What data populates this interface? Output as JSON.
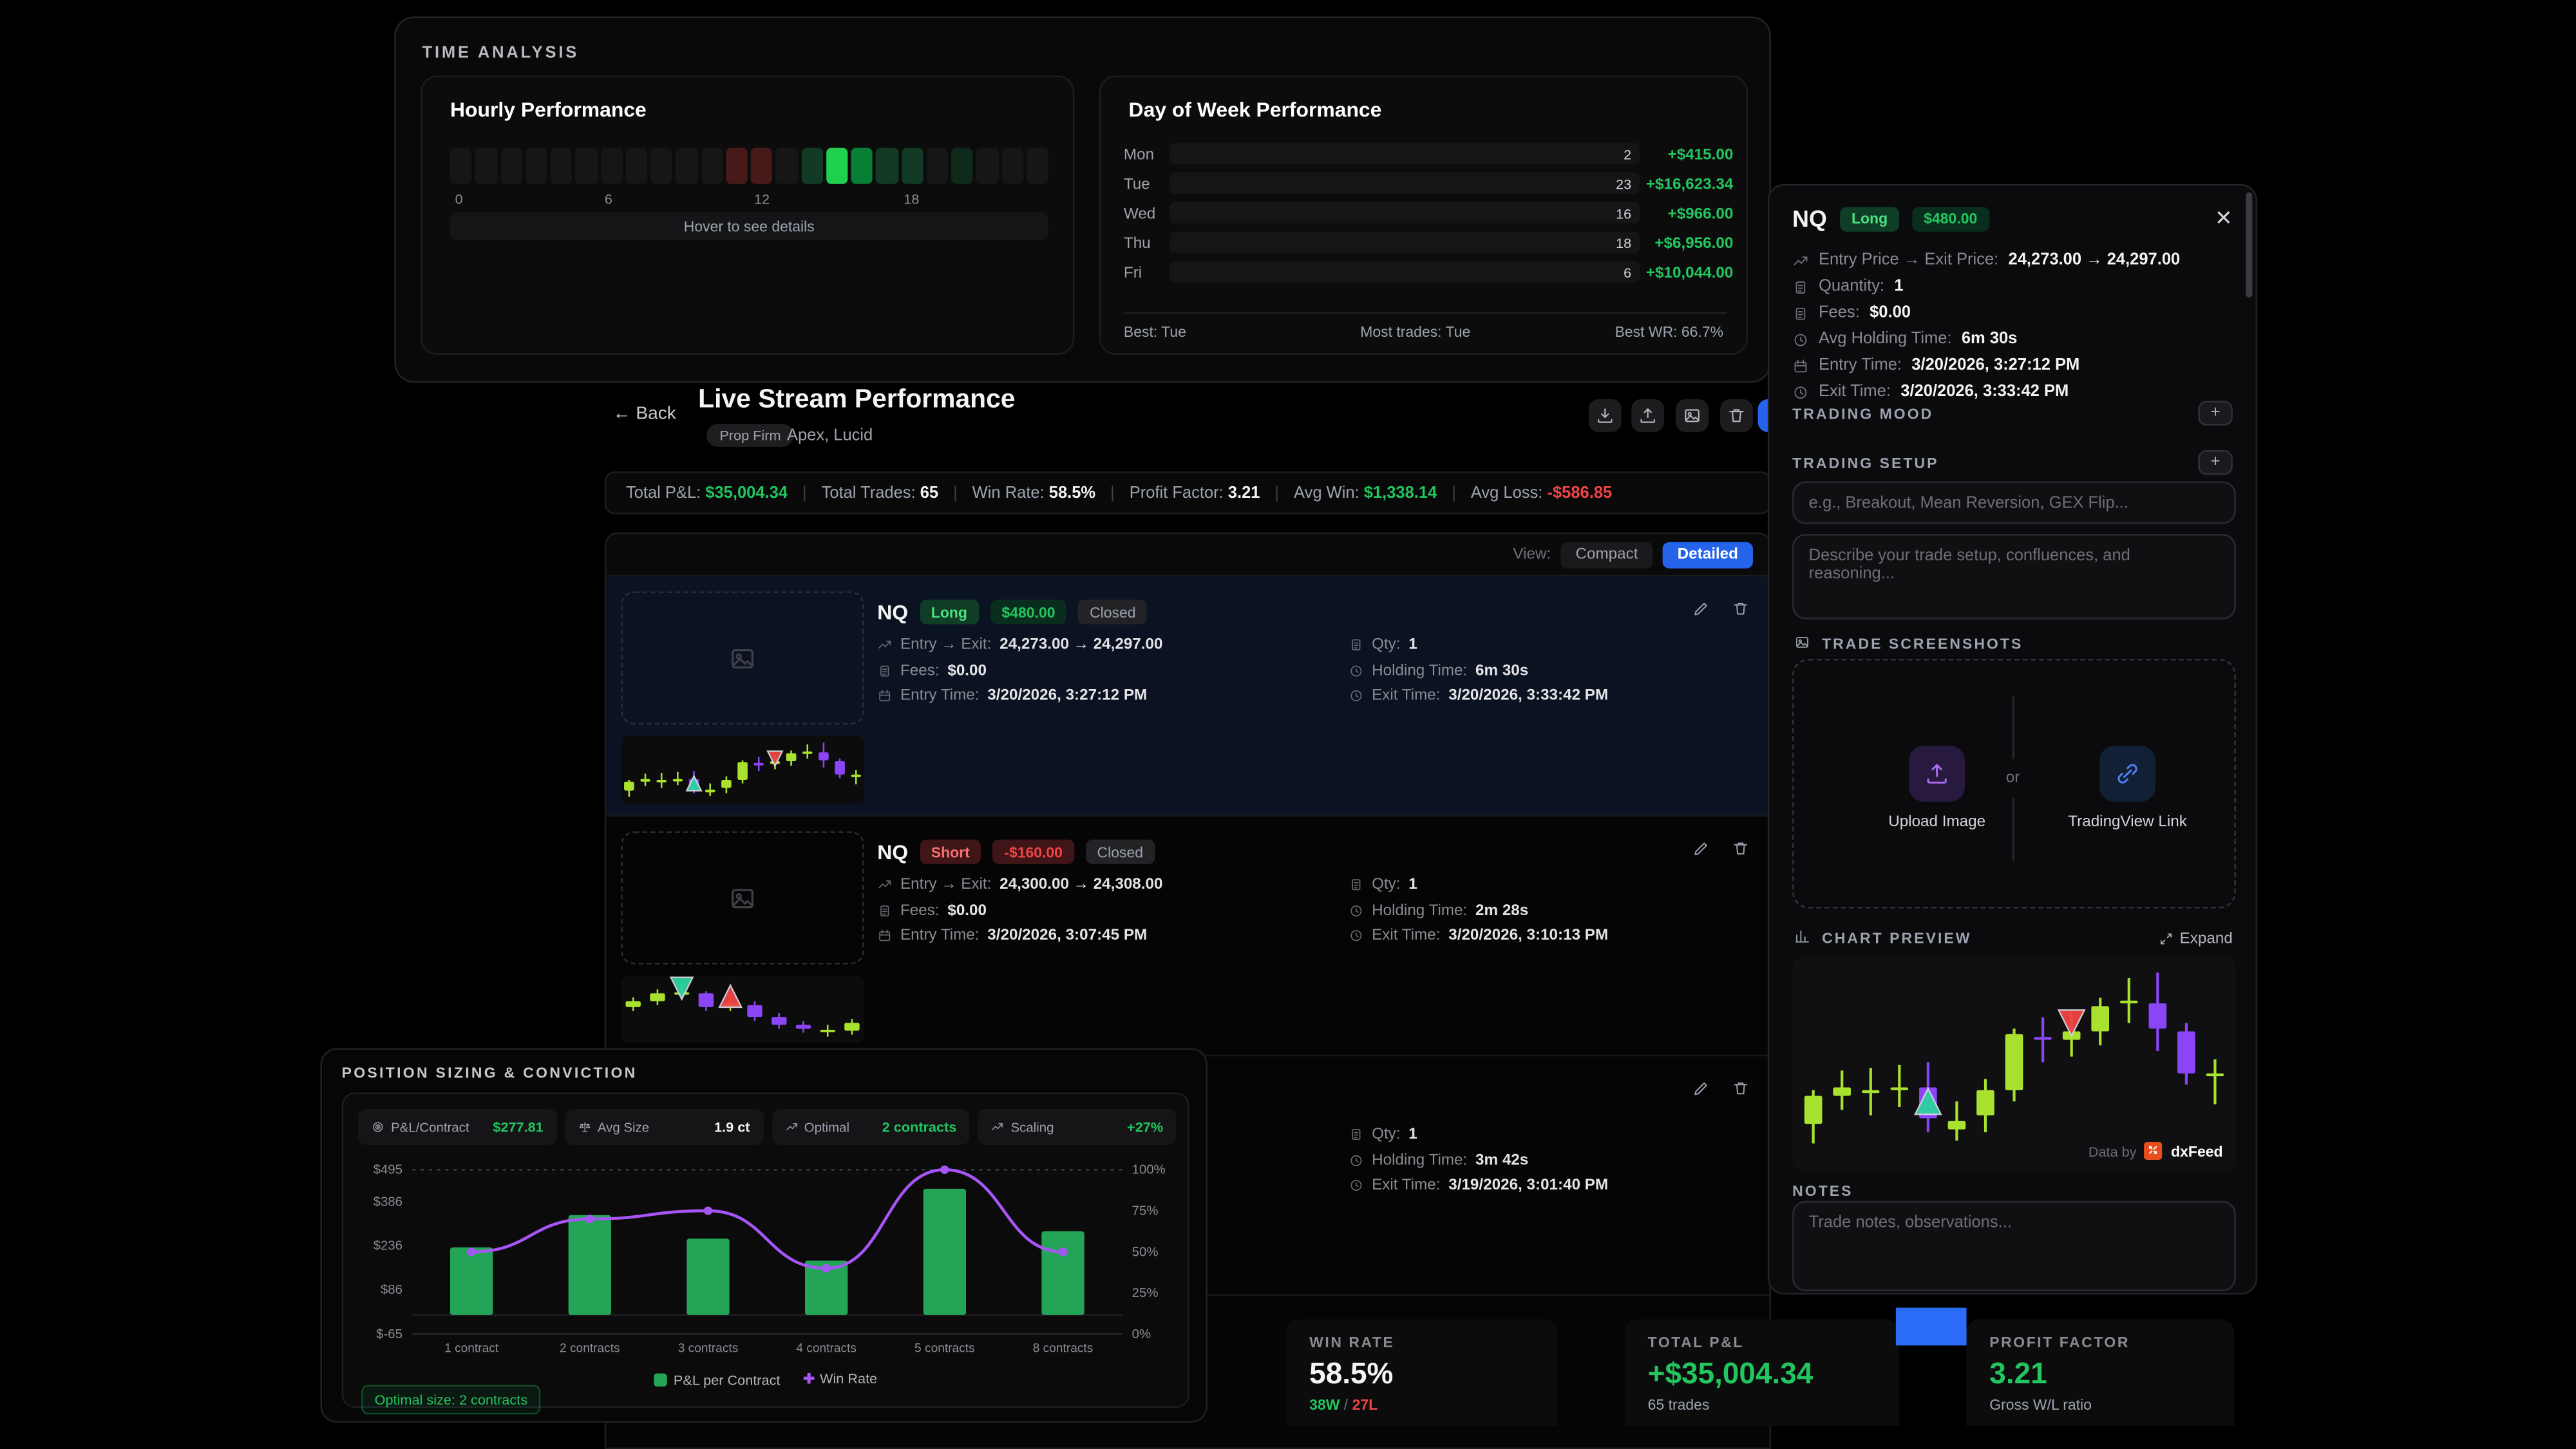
{
  "colors": {
    "green": "#22c55e",
    "red": "#ef4444",
    "lime": "#a8e22e",
    "purple": "#8b45f7",
    "line_purple": "#a855f7",
    "bar_green": "#23a457",
    "blue": "#2563eb"
  },
  "time_analysis": {
    "title": "TIME ANALYSIS",
    "hourly": {
      "title": "Hourly Performance",
      "hover_hint": "Hover to see details",
      "tick_labels": [
        "0",
        "6",
        "12",
        "18"
      ],
      "cells": [
        "n",
        "n",
        "n",
        "n",
        "n",
        "n",
        "n",
        "n",
        "n",
        "n",
        "n",
        "r",
        "r",
        "n",
        "g2",
        "g4",
        "g3",
        "g2",
        "g2",
        "n",
        "g1",
        "n",
        "n",
        "n"
      ]
    },
    "day_of_week": {
      "title": "Day of Week Performance",
      "rows": [
        {
          "day": "Mon",
          "count": "2",
          "pnl": "+$415.00",
          "pct": 2.5
        },
        {
          "day": "Tue",
          "count": "23",
          "pnl": "+$16,623.34",
          "pct": 100
        },
        {
          "day": "Wed",
          "count": "16",
          "pnl": "+$966.00",
          "pct": 5.8
        },
        {
          "day": "Thu",
          "count": "18",
          "pnl": "+$6,956.00",
          "pct": 41.8
        },
        {
          "day": "Fri",
          "count": "6",
          "pnl": "+$10,044.00",
          "pct": 60.4
        }
      ],
      "footer": {
        "best": "Best: Tue",
        "most": "Most trades: Tue",
        "best_wr": "Best WR: 66.7%"
      }
    }
  },
  "stream": {
    "back": "Back",
    "title": "Live Stream Performance",
    "chip": "Prop Firm",
    "subtitle": "Apex, Lucid",
    "stats": [
      {
        "label": "Total P&L:",
        "value": "$35,004.34",
        "tone": "green"
      },
      {
        "label": "Total Trades:",
        "value": "65",
        "tone": "white"
      },
      {
        "label": "Win Rate:",
        "value": "58.5%",
        "tone": "white"
      },
      {
        "label": "Profit Factor:",
        "value": "3.21",
        "tone": "white"
      },
      {
        "label": "Avg Win:",
        "value": "$1,338.14",
        "tone": "green"
      },
      {
        "label": "Avg Loss:",
        "value": "-$586.85",
        "tone": "red"
      }
    ],
    "view": {
      "label": "View:",
      "compact": "Compact",
      "detailed": "Detailed"
    },
    "trades": [
      {
        "symbol": "NQ",
        "side": "Long",
        "side_tone": "long",
        "pnl": "$480.00",
        "pnl_tone": "g",
        "status": "Closed",
        "selected": true,
        "candles": "long",
        "rows_left": [
          [
            "trend",
            "Entry → Exit:",
            "24,273.00 → 24,297.00"
          ],
          [
            "file",
            "Fees:",
            "$0.00"
          ],
          [
            "calendar",
            "Entry Time:",
            "3/20/2026, 3:27:12 PM"
          ]
        ],
        "rows_right": [
          [
            "file",
            "Qty:",
            "1"
          ],
          [
            "clock",
            "Holding Time:",
            "6m 30s"
          ],
          [
            "clock",
            "Exit Time:",
            "3/20/2026, 3:33:42 PM"
          ]
        ]
      },
      {
        "symbol": "NQ",
        "side": "Short",
        "side_tone": "short",
        "pnl": "-$160.00",
        "pnl_tone": "r",
        "status": "Closed",
        "selected": false,
        "candles": "short",
        "rows_left": [
          [
            "trend",
            "Entry → Exit:",
            "24,300.00 → 24,308.00"
          ],
          [
            "file",
            "Fees:",
            "$0.00"
          ],
          [
            "calendar",
            "Entry Time:",
            "3/20/2026, 3:07:45 PM"
          ]
        ],
        "rows_right": [
          [
            "file",
            "Qty:",
            "1"
          ],
          [
            "clock",
            "Holding Time:",
            "2m 28s"
          ],
          [
            "clock",
            "Exit Time:",
            "3/20/2026, 3:10:13 PM"
          ]
        ]
      },
      {
        "symbol": "",
        "side": "",
        "side_tone": "",
        "pnl": "",
        "pnl_tone": "",
        "status": "",
        "selected": false,
        "candles": "",
        "partial": true,
        "rows_left": [],
        "rows_right": [
          [
            "file",
            "Qty:",
            "1"
          ],
          [
            "clock",
            "Holding Time:",
            "3m 42s"
          ],
          [
            "clock",
            "Exit Time:",
            "3/19/2026, 3:01:40 PM"
          ]
        ]
      }
    ]
  },
  "position_sizing": {
    "title": "POSITION SIZING & CONVICTION",
    "pills": [
      {
        "icon": "target",
        "label": "P&L/Contract",
        "value": "$277.81",
        "tone": "green"
      },
      {
        "icon": "scale",
        "label": "Avg Size",
        "value": "1.9 ct",
        "tone": "white"
      },
      {
        "icon": "trend",
        "label": "Optimal",
        "value": "2 contracts",
        "tone": "green"
      },
      {
        "icon": "trend",
        "label": "Scaling",
        "value": "+27%",
        "tone": "green"
      }
    ],
    "legend": {
      "bars": "P&L per Contract",
      "line": "Win Rate"
    },
    "optimal_badge": "Optimal size: 2 contracts"
  },
  "panel": {
    "symbol": "NQ",
    "side": "Long",
    "pnl": "$480.00",
    "rows": [
      [
        "trend",
        "Entry Price → Exit Price:",
        "24,273.00 → 24,297.00"
      ],
      [
        "file",
        "Quantity:",
        "1"
      ],
      [
        "file",
        "Fees:",
        "$0.00"
      ],
      [
        "clock",
        "Avg Holding Time:",
        "6m 30s"
      ],
      [
        "calendar",
        "Entry Time:",
        "3/20/2026, 3:27:12 PM"
      ],
      [
        "clock",
        "Exit Time:",
        "3/20/2026, 3:33:42 PM"
      ]
    ],
    "mood_label": "TRADING MOOD",
    "setup_label": "TRADING SETUP",
    "setup_placeholder": "e.g., Breakout, Mean Reversion, GEX Flip...",
    "setup_desc_placeholder": "Describe your trade setup, confluences, and reasoning...",
    "shots_label": "TRADE SCREENSHOTS",
    "upload_label": "Upload Image",
    "or": "or",
    "tv_label": "TradingView Link",
    "preview_label": "CHART PREVIEW",
    "expand": "Expand",
    "databy": "Data by",
    "dxfeed": "dxFeed",
    "notes_label": "NOTES",
    "notes_placeholder": "Trade notes, observations..."
  },
  "bottom_stats": [
    {
      "label": "WIN RATE",
      "value": "58.5%",
      "tone": "white",
      "sub_parts": [
        [
          "38W",
          "green"
        ],
        [
          " / ",
          "sep"
        ],
        [
          "27L",
          "red"
        ]
      ]
    },
    {
      "label": "TOTAL P&L",
      "value": "+$35,004.34",
      "tone": "green",
      "sub_parts": [
        [
          "65 trades",
          "muted"
        ]
      ]
    },
    {
      "label": "PROFIT FACTOR",
      "value": "3.21",
      "tone": "green",
      "sub_parts": [
        [
          "Gross W/L ratio",
          "muted"
        ]
      ]
    }
  ],
  "chart_data": [
    {
      "id": "hourly_heatmap",
      "type": "heatmap",
      "title": "Hourly Performance",
      "x": [
        0,
        1,
        2,
        3,
        4,
        5,
        6,
        7,
        8,
        9,
        10,
        11,
        12,
        13,
        14,
        15,
        16,
        17,
        18,
        19,
        20,
        21,
        22,
        23
      ],
      "values": [
        "none",
        "none",
        "none",
        "none",
        "none",
        "none",
        "none",
        "none",
        "none",
        "none",
        "none",
        "loss",
        "loss",
        "none",
        "win-low",
        "win-high",
        "win-med",
        "win-low",
        "win-low",
        "none",
        "win-faint",
        "none",
        "none",
        "none"
      ],
      "tick_labels": [
        "0",
        "6",
        "12",
        "18"
      ]
    },
    {
      "id": "day_of_week",
      "type": "bar",
      "title": "Day of Week Performance",
      "categories": [
        "Mon",
        "Tue",
        "Wed",
        "Thu",
        "Fri"
      ],
      "series": [
        {
          "name": "trades",
          "values": [
            2,
            23,
            16,
            18,
            6
          ]
        },
        {
          "name": "pnl_usd",
          "values": [
            415.0,
            16623.34,
            966.0,
            6956.0,
            10044.0
          ]
        }
      ],
      "annotations": {
        "best": "Tue",
        "most_trades": "Tue",
        "best_wr": "66.7%"
      }
    },
    {
      "id": "position_sizing",
      "type": "bar",
      "categories": [
        "1 contract",
        "2 contracts",
        "3 contracts",
        "4 contracts",
        "5 contracts",
        "8 contracts"
      ],
      "series": [
        {
          "name": "P&L per Contract",
          "type": "bar",
          "values": [
            230,
            340,
            260,
            185,
            430,
            285
          ]
        },
        {
          "name": "Win Rate",
          "type": "line",
          "values": [
            50,
            70,
            75,
            40,
            100,
            50
          ]
        }
      ],
      "y_left": {
        "ticks": [
          495,
          386,
          236,
          86,
          -65
        ],
        "labels": [
          "$495",
          "$386",
          "$236",
          "$86",
          "$-65"
        ],
        "range": [
          -65,
          495
        ]
      },
      "y_right": {
        "ticks": [
          100,
          75,
          50,
          25,
          0
        ],
        "labels": [
          "100%",
          "75%",
          "50%",
          "25%",
          "0%"
        ],
        "range": [
          0,
          100
        ]
      },
      "legend_position": "bottom"
    },
    {
      "id": "candles_long",
      "type": "candlestick",
      "candles": [
        {
          "o": 30,
          "c": 40,
          "h": 42,
          "l": 23,
          "k": "g"
        },
        {
          "o": 40,
          "c": 43,
          "h": 49,
          "l": 35,
          "k": "g"
        },
        {
          "o": 41,
          "c": 42,
          "h": 50,
          "l": 33,
          "k": "g"
        },
        {
          "o": 42,
          "c": 43,
          "h": 51,
          "l": 36,
          "k": "g"
        },
        {
          "o": 43,
          "c": 32,
          "h": 52,
          "l": 27,
          "k": "p"
        },
        {
          "o": 28,
          "c": 31,
          "h": 38,
          "l": 24,
          "k": "g"
        },
        {
          "o": 33,
          "c": 42,
          "h": 46,
          "l": 27,
          "k": "g"
        },
        {
          "o": 42,
          "c": 62,
          "h": 64,
          "l": 38,
          "k": "g"
        },
        {
          "o": 61,
          "c": 60,
          "h": 68,
          "l": 52,
          "k": "p"
        },
        {
          "o": 60,
          "c": 63,
          "h": 70,
          "l": 54,
          "k": "g"
        },
        {
          "o": 63,
          "c": 72,
          "h": 75,
          "l": 58,
          "k": "g"
        },
        {
          "o": 73,
          "c": 74,
          "h": 82,
          "l": 66,
          "k": "g"
        },
        {
          "o": 73,
          "c": 64,
          "h": 84,
          "l": 56,
          "k": "p"
        },
        {
          "o": 63,
          "c": 48,
          "h": 66,
          "l": 44,
          "k": "p"
        },
        {
          "o": 47,
          "c": 48,
          "h": 53,
          "l": 37,
          "k": "g"
        }
      ],
      "markers": [
        {
          "i": 4,
          "t": "up",
          "c": "teal",
          "at": 38
        },
        {
          "i": 9,
          "t": "down",
          "c": "red",
          "at": 66
        }
      ]
    },
    {
      "id": "candles_short",
      "type": "candlestick",
      "candles": [
        {
          "o": 48,
          "c": 54,
          "h": 58,
          "l": 44,
          "k": "g"
        },
        {
          "o": 54,
          "c": 62,
          "h": 66,
          "l": 50,
          "k": "g"
        },
        {
          "o": 62,
          "c": 63,
          "h": 70,
          "l": 58,
          "k": "g"
        },
        {
          "o": 62,
          "c": 48,
          "h": 64,
          "l": 44,
          "k": "p"
        },
        {
          "o": 48,
          "c": 52,
          "h": 56,
          "l": 44,
          "k": "g"
        },
        {
          "o": 50,
          "c": 38,
          "h": 54,
          "l": 34,
          "k": "p"
        },
        {
          "o": 38,
          "c": 30,
          "h": 42,
          "l": 26,
          "k": "p"
        },
        {
          "o": 30,
          "c": 26,
          "h": 34,
          "l": 22,
          "k": "p"
        },
        {
          "o": 24,
          "c": 25,
          "h": 30,
          "l": 18,
          "k": "g"
        },
        {
          "o": 24,
          "c": 32,
          "h": 36,
          "l": 20,
          "k": "g"
        }
      ],
      "markers": [
        {
          "i": 2,
          "t": "down",
          "c": "teal",
          "at": 67
        },
        {
          "i": 4,
          "t": "up",
          "c": "red",
          "at": 59
        }
      ]
    }
  ]
}
